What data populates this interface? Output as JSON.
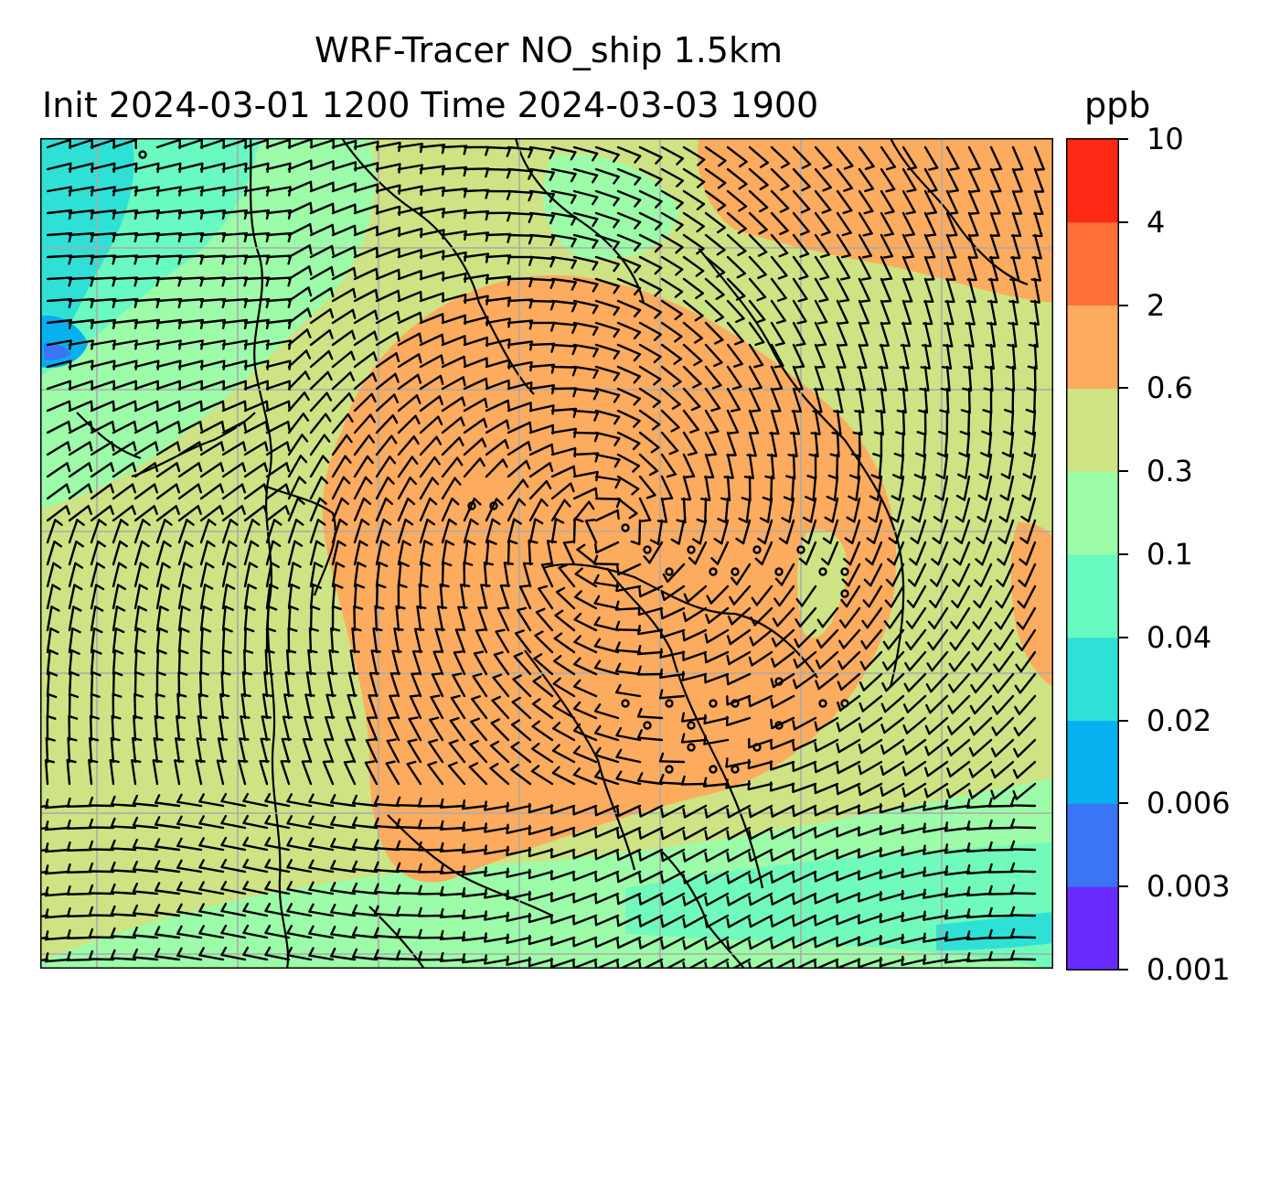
{
  "header": {
    "title_line1": "WRF-Tracer NO_ship 1.5km",
    "title_line2": "Init 2024-03-01 1200 Time 2024-03-03 1900",
    "unit": "ppb"
  },
  "colorbar": {
    "levels": [
      "0.001",
      "0.003",
      "0.006",
      "0.02",
      "0.04",
      "0.1",
      "0.3",
      "0.6",
      "2",
      "4",
      "10"
    ],
    "colors": [
      "#6a2bff",
      "#3a75f6",
      "#06b0ee",
      "#2fe0d6",
      "#68fac0",
      "#9cfca8",
      "#cee384",
      "#fdab5e",
      "#ff7038",
      "#ff2a16"
    ]
  },
  "map": {
    "fill_legend": {
      "low": "#9cfca8",
      "mid": "#cee384",
      "high": "#fdab5e",
      "teal": "#68fac0",
      "cyan": "#2fe0d6",
      "blue": "#06b0ee"
    },
    "gridlines": true,
    "wind_barbs": true
  }
}
